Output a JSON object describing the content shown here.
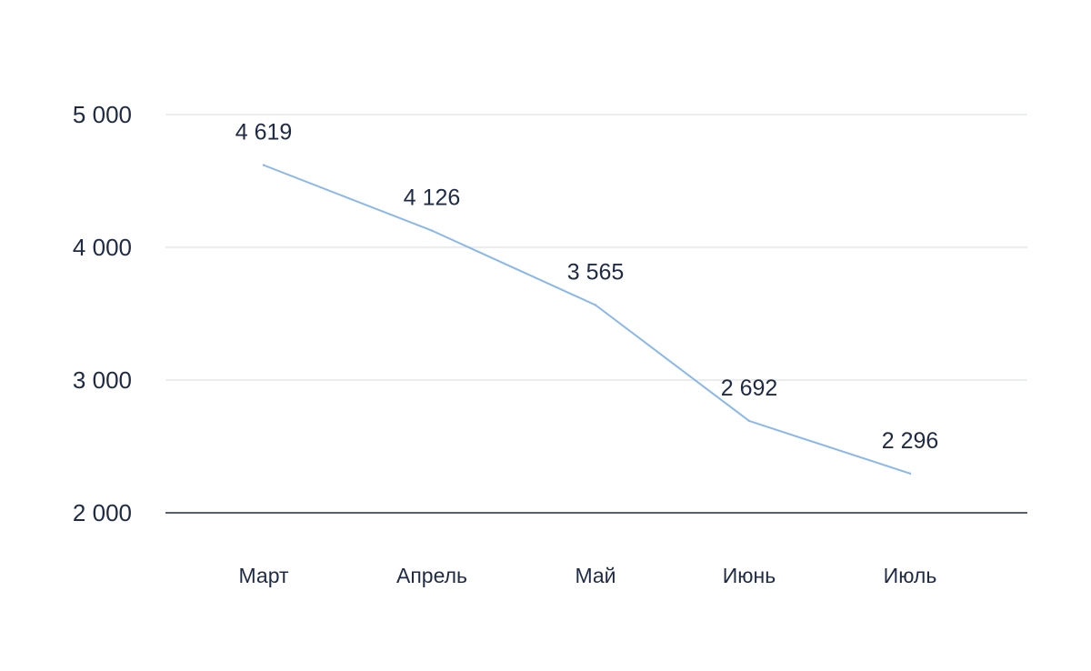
{
  "chart_data": {
    "type": "line",
    "title": "",
    "xlabel": "",
    "ylabel": "",
    "categories": [
      "Март",
      "Апрель",
      "Май",
      "Июнь",
      "Июль"
    ],
    "series": [
      {
        "values": [
          4619,
          4126,
          3565,
          2692,
          2296
        ],
        "data_labels": [
          "4 619",
          "4 126",
          "3 565",
          "2 692",
          "2 296"
        ],
        "color": "#8ab8ea"
      }
    ],
    "ylim": [
      2000,
      5000
    ],
    "yticks": [
      2000,
      3000,
      4000,
      5000
    ],
    "ytick_labels": [
      "2 000",
      "3 000",
      "4 000",
      "5 000"
    ],
    "grid": true,
    "legend": "none",
    "colors": {
      "grid": "#e3e6ea",
      "axis": "#1f2a44",
      "text": "#1f2a44"
    }
  }
}
